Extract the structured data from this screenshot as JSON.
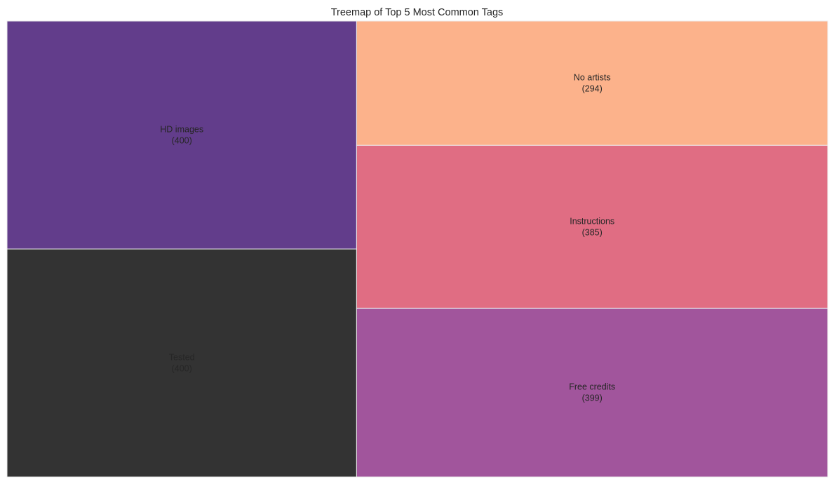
{
  "chart_data": {
    "type": "treemap",
    "title": "Treemap of Top 5 Most Common Tags",
    "items": [
      {
        "label": "HD images",
        "value": 400,
        "color": "#623d8b"
      },
      {
        "label": "Tested",
        "value": 400,
        "color": "#333333"
      },
      {
        "label": "No artists",
        "value": 294,
        "color": "#fcb28b"
      },
      {
        "label": "Instructions",
        "value": 385,
        "color": "#e06d83"
      },
      {
        "label": "Free credits",
        "value": 399,
        "color": "#a1559c"
      }
    ],
    "tile_border_color": "#eeeeee",
    "grid": false,
    "legend": "none"
  }
}
